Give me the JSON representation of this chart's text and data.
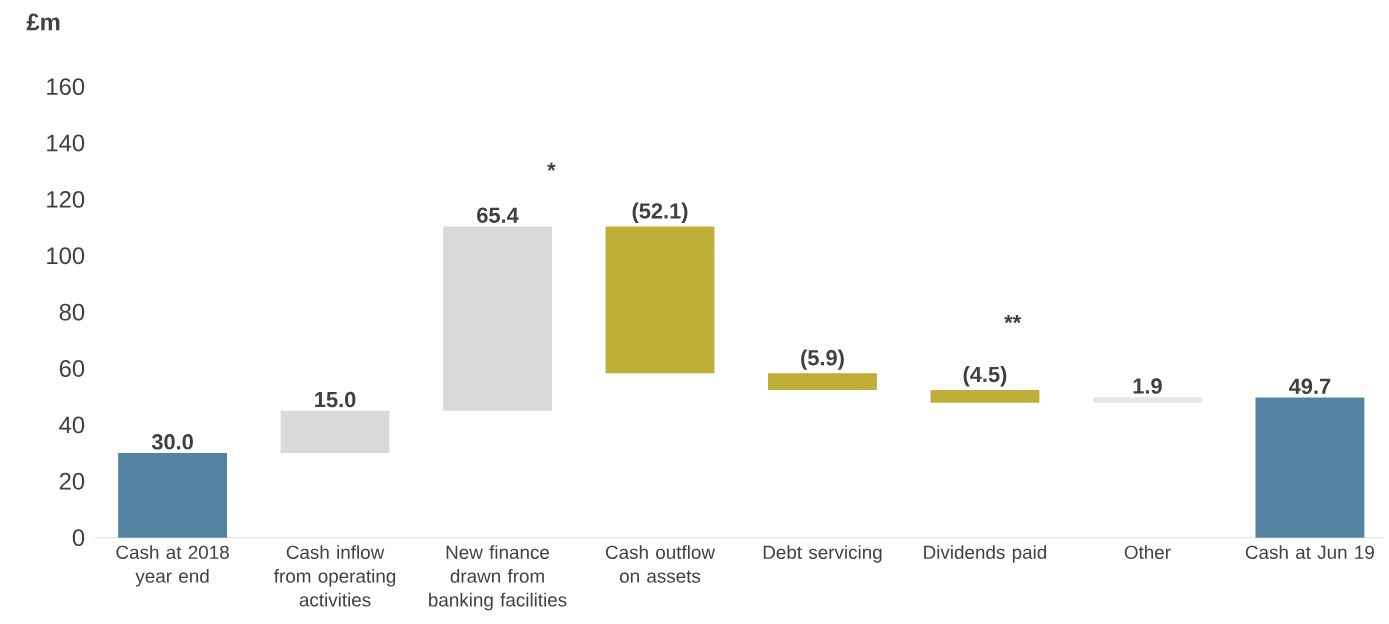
{
  "chart_data": {
    "type": "bar",
    "ylabel": "£m",
    "categories": [
      "Cash at 2018 year end",
      "Cash inflow from operating activities",
      "New finance drawn from banking facilities",
      "Cash outflow on assets",
      "Debt servicing",
      "Dividends paid",
      "Other",
      "Cash at Jun 19"
    ],
    "values": [
      30.0,
      15.0,
      65.4,
      -52.1,
      -5.9,
      -4.5,
      1.9,
      49.7
    ],
    "base": [
      0,
      30.0,
      45.0,
      110.4,
      58.3,
      52.4,
      47.9,
      0
    ],
    "colors": [
      "#5583a2",
      "#d9d9d9",
      "#d9d9d9",
      "#bfae37",
      "#bfae37",
      "#bfae37",
      "#e6e6e6",
      "#5583a2"
    ],
    "value_labels": [
      "30.0",
      "15.0",
      "65.4",
      "(52.1)",
      "(5.9)",
      "(4.5)",
      "1.9",
      "49.7"
    ],
    "ylim": [
      0,
      160
    ],
    "yticks": [
      0,
      20,
      40,
      60,
      80,
      100,
      120,
      140,
      160
    ],
    "annotations": [
      "*",
      "**"
    ]
  }
}
